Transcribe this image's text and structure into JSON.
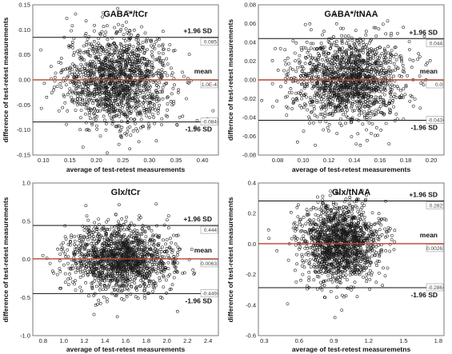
{
  "chart_data": [
    {
      "type": "scatter",
      "title": "GABA*/tCr",
      "xlabel": "average  of test-retest  measurements",
      "ylabel": "difference of test-retest  measurements",
      "xlim": [
        0.08,
        0.43
      ],
      "ylim": [
        -0.15,
        0.15
      ],
      "xticks": [
        "0.10",
        "0.15",
        "0.20",
        "0.25",
        "0.30",
        "0.35",
        "0.40"
      ],
      "yticks": [
        "0.15",
        "0.10",
        "0.05",
        "0.00",
        "-0.05",
        "-0.10",
        "-0.15"
      ],
      "lines": {
        "upper": 0.085,
        "mean": 0.0001,
        "lower": -0.084
      },
      "annotations": {
        "upper": "+1.96 SD",
        "mean": "mean",
        "lower": "-1.96 SD"
      },
      "box_values": {
        "upper": "0.085",
        "mean": "1.0E-4",
        "lower": "-0.084"
      },
      "cloud": {
        "center_x": 0.24,
        "spread_x": 0.05,
        "spread_y": 0.045,
        "n": 1500
      }
    },
    {
      "type": "scatter",
      "title": "GABA*/tNAA",
      "xlabel": "average  of test-retest  measurements",
      "ylabel": "differnce of test-retest  measurements",
      "xlim": [
        0.065,
        0.21
      ],
      "ylim": [
        -0.08,
        0.08
      ],
      "xticks": [
        "0.08",
        "0.10",
        "0.12",
        "0.14",
        "0.16",
        "0.18",
        "0.20"
      ],
      "yticks": [
        "0.08",
        "0.06",
        "0.04",
        "0.02",
        "0.00",
        "-0.02",
        "-0.04",
        "-0.06",
        "-0.08"
      ],
      "lines": {
        "upper": 0.044,
        "mean": 0.0,
        "lower": -0.043
      },
      "annotations": {
        "upper": "+1.96 SD",
        "mean": "mean",
        "lower": "-1.96 SD"
      },
      "box_values": {
        "upper": "0.044",
        "mean": "0.0",
        "lower": "-0.043"
      },
      "cloud": {
        "center_x": 0.135,
        "spread_x": 0.022,
        "spread_y": 0.022,
        "n": 1500
      }
    },
    {
      "type": "scatter",
      "title": "Glx/tCr",
      "xlabel": "average  of test-retest  measurements",
      "ylabel": "difference of test-retest  measurements",
      "xlim": [
        0.7,
        2.5
      ],
      "ylim": [
        -1.0,
        1.0
      ],
      "xticks": [
        "0.8",
        "1.0",
        "1.2",
        "1.4",
        "1.6",
        "1.8",
        "2.0",
        "2.2",
        "2.4"
      ],
      "yticks": [
        "1.0",
        "0.5",
        "0.0",
        "-0.5",
        "-1.0"
      ],
      "lines": {
        "upper": 0.444,
        "mean": 0.0063,
        "lower": -0.449
      },
      "annotations": {
        "upper": "+1.96 SD",
        "mean": "mean",
        "lower": "-1.96 SD"
      },
      "box_values": {
        "upper": "0.444",
        "mean": "0.0063",
        "lower": "-0.449"
      },
      "cloud": {
        "center_x": 1.55,
        "spread_x": 0.25,
        "spread_y": 0.22,
        "n": 1500
      }
    },
    {
      "type": "scatter",
      "title": "Glx/tNAA",
      "xlabel": "average  of test-retest  measuremetns",
      "ylabel": "difference of test-retest  measurements",
      "xlim": [
        0.25,
        1.85
      ],
      "ylim": [
        -0.6,
        0.4
      ],
      "xticks": [
        "0.3",
        "0.6",
        "0.9",
        "1.2",
        "1.5",
        "1.8"
      ],
      "yticks": [
        "0.4",
        "0.2",
        "0.0",
        "-0.2",
        "-0.4",
        "-0.6"
      ],
      "lines": {
        "upper": 0.282,
        "mean": 0.0026,
        "lower": -0.286
      },
      "annotations": {
        "upper": "+1.96 SD",
        "mean": "mean",
        "lower": "-1.96 SD"
      },
      "box_values": {
        "upper": "0.282",
        "mean": "0.0026",
        "lower": "-0.286"
      },
      "cloud": {
        "center_x": 0.95,
        "spread_x": 0.17,
        "spread_y": 0.13,
        "n": 1500
      }
    }
  ]
}
